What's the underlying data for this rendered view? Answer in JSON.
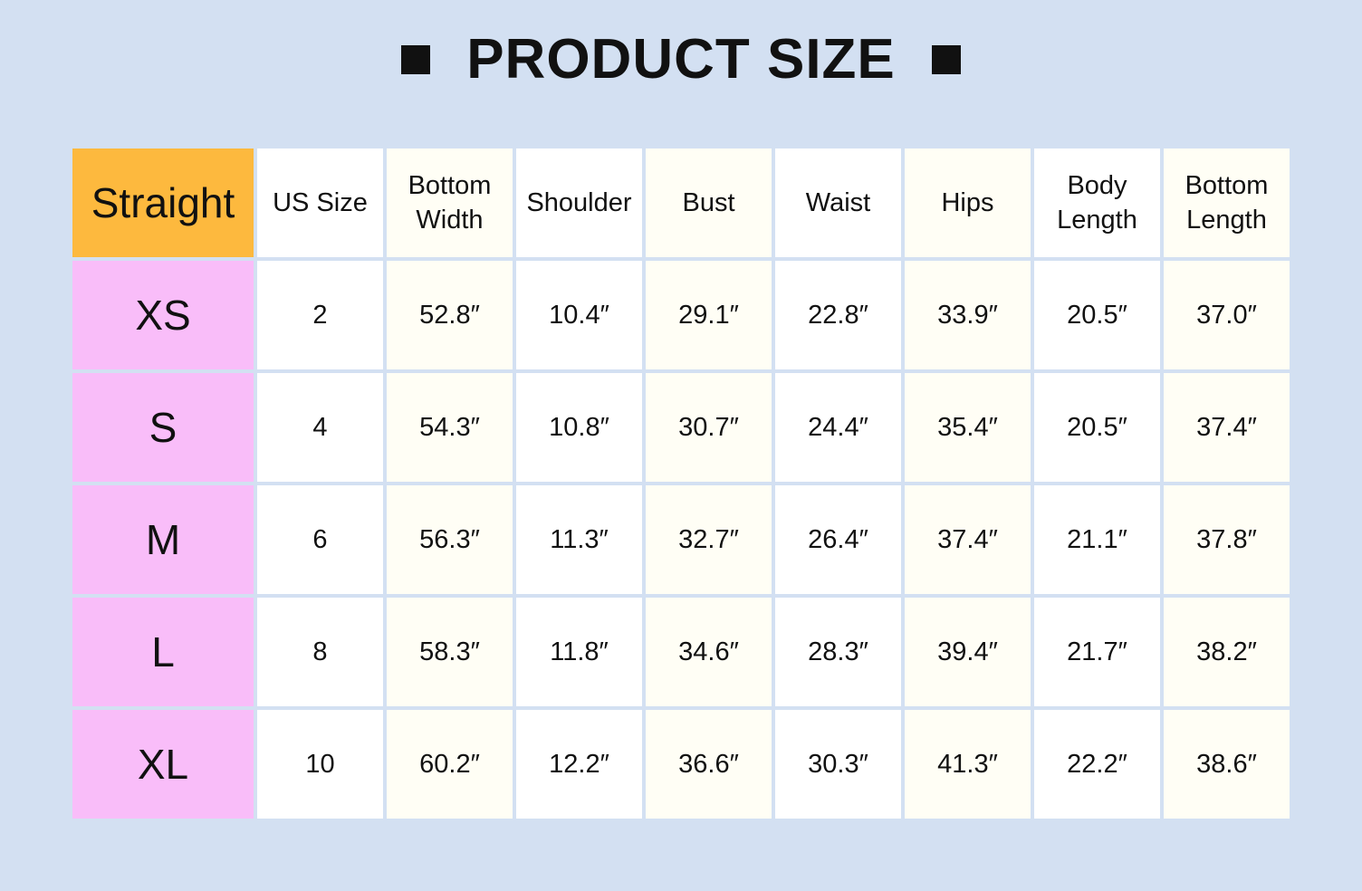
{
  "title": "PRODUCT SIZE",
  "corner": "Straight",
  "headers": [
    "US Size",
    "Bottom Width",
    "Shoulder",
    "Bust",
    "Waist",
    "Hips",
    "Body Length",
    "Bottom Length"
  ],
  "rows": [
    {
      "size": "XS",
      "values": [
        "2",
        "52.8″",
        "10.4″",
        "29.1″",
        "22.8″",
        "33.9″",
        "20.5″",
        "37.0″"
      ]
    },
    {
      "size": "S",
      "values": [
        "4",
        "54.3″",
        "10.8″",
        "30.7″",
        "24.4″",
        "35.4″",
        "20.5″",
        "37.4″"
      ]
    },
    {
      "size": "M",
      "values": [
        "6",
        "56.3″",
        "11.3″",
        "32.7″",
        "26.4″",
        "37.4″",
        "21.1″",
        "37.8″"
      ]
    },
    {
      "size": "L",
      "values": [
        "8",
        "58.3″",
        "11.8″",
        "34.6″",
        "28.3″",
        "39.4″",
        "21.7″",
        "38.2″"
      ]
    },
    {
      "size": "XL",
      "values": [
        "10",
        "60.2″",
        "12.2″",
        "36.6″",
        "30.3″",
        "41.3″",
        "22.2″",
        "38.6″"
      ]
    }
  ],
  "colors": {
    "background": "#d3e0f2",
    "corner": "#fdb93e",
    "size_column": "#f9bdf9",
    "cream": "#fffef5"
  }
}
